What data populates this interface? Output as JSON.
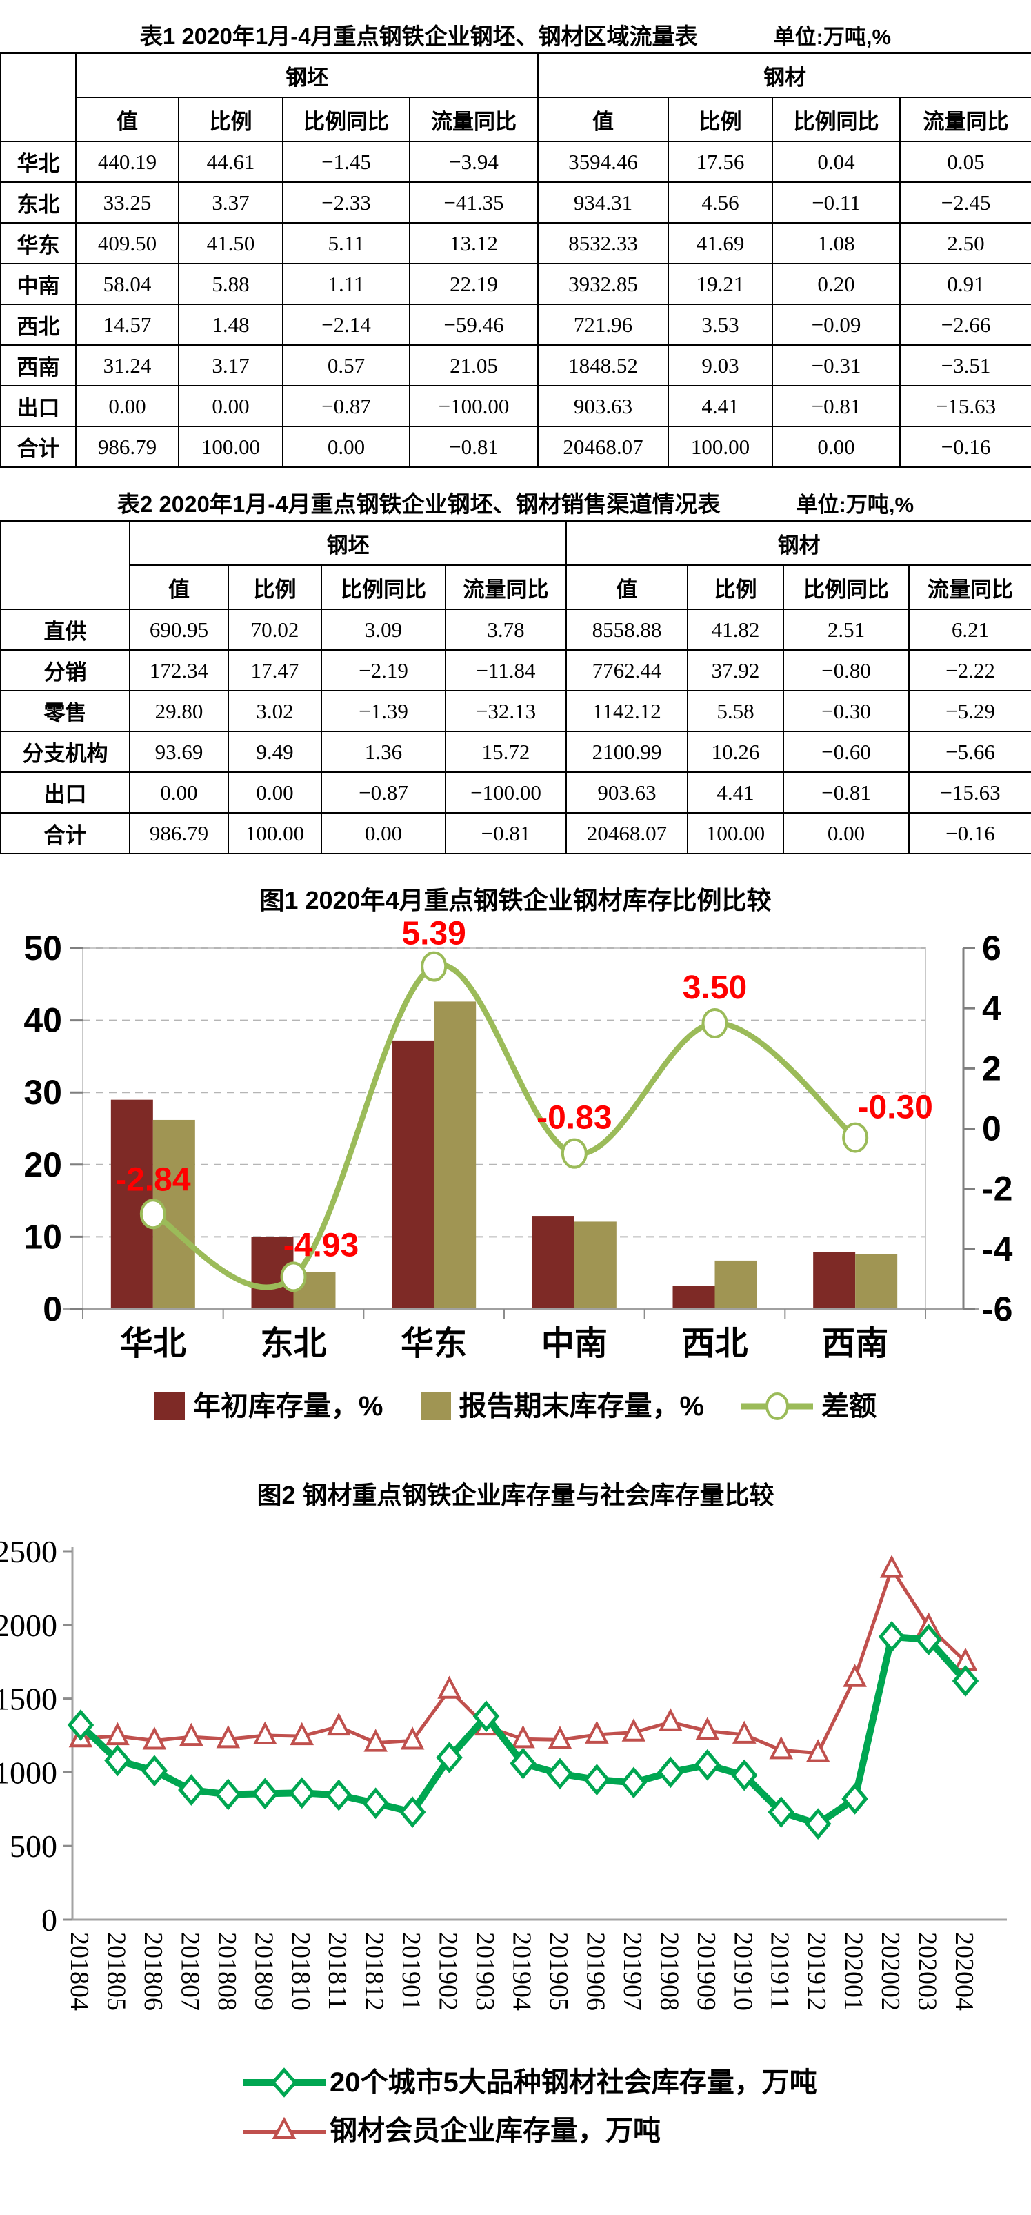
{
  "table1": {
    "title": "表1 2020年1月-4月重点钢铁企业钢坯、钢材区域流量表",
    "unit": "单位:万吨,%",
    "group_headers": [
      "钢坯",
      "钢材"
    ],
    "sub_headers": [
      "值",
      "比例",
      "比例同比",
      "流量同比"
    ],
    "row_labels": [
      "华北",
      "东北",
      "华东",
      "中南",
      "西北",
      "西南",
      "出口",
      "合计"
    ],
    "rows": [
      [
        "440.19",
        "44.61",
        "−1.45",
        "−3.94",
        "3594.46",
        "17.56",
        "0.04",
        "0.05"
      ],
      [
        "33.25",
        "3.37",
        "−2.33",
        "−41.35",
        "934.31",
        "4.56",
        "−0.11",
        "−2.45"
      ],
      [
        "409.50",
        "41.50",
        "5.11",
        "13.12",
        "8532.33",
        "41.69",
        "1.08",
        "2.50"
      ],
      [
        "58.04",
        "5.88",
        "1.11",
        "22.19",
        "3932.85",
        "19.21",
        "0.20",
        "0.91"
      ],
      [
        "14.57",
        "1.48",
        "−2.14",
        "−59.46",
        "721.96",
        "3.53",
        "−0.09",
        "−2.66"
      ],
      [
        "31.24",
        "3.17",
        "0.57",
        "21.05",
        "1848.52",
        "9.03",
        "−0.31",
        "−3.51"
      ],
      [
        "0.00",
        "0.00",
        "−0.87",
        "−100.00",
        "903.63",
        "4.41",
        "−0.81",
        "−15.63"
      ],
      [
        "986.79",
        "100.00",
        "0.00",
        "−0.81",
        "20468.07",
        "100.00",
        "0.00",
        "−0.16"
      ]
    ]
  },
  "table2": {
    "title": "表2 2020年1月-4月重点钢铁企业钢坯、钢材销售渠道情况表",
    "unit": "单位:万吨,%",
    "group_headers": [
      "钢坯",
      "钢材"
    ],
    "sub_headers": [
      "值",
      "比例",
      "比例同比",
      "流量同比"
    ],
    "row_labels": [
      "直供",
      "分销",
      "零售",
      "分支机构",
      "出口",
      "合计"
    ],
    "rows": [
      [
        "690.95",
        "70.02",
        "3.09",
        "3.78",
        "8558.88",
        "41.82",
        "2.51",
        "6.21"
      ],
      [
        "172.34",
        "17.47",
        "−2.19",
        "−11.84",
        "7762.44",
        "37.92",
        "−0.80",
        "−2.22"
      ],
      [
        "29.80",
        "3.02",
        "−1.39",
        "−32.13",
        "1142.12",
        "5.58",
        "−0.30",
        "−5.29"
      ],
      [
        "93.69",
        "9.49",
        "1.36",
        "15.72",
        "2100.99",
        "10.26",
        "−0.60",
        "−5.66"
      ],
      [
        "0.00",
        "0.00",
        "−0.87",
        "−100.00",
        "903.63",
        "4.41",
        "−0.81",
        "−15.63"
      ],
      [
        "986.79",
        "100.00",
        "0.00",
        "−0.81",
        "20468.07",
        "100.00",
        "0.00",
        "−0.16"
      ]
    ]
  },
  "chart_data": [
    {
      "type": "bar",
      "title": "图1 2020年4月重点钢铁企业钢材库存比例比较",
      "categories": [
        "华北",
        "东北",
        "华东",
        "中南",
        "西北",
        "西南"
      ],
      "series": [
        {
          "name": "年初库存量，%",
          "kind": "bar",
          "color": "#7e2a26",
          "values": [
            29.0,
            10.0,
            37.2,
            12.9,
            3.2,
            7.9
          ]
        },
        {
          "name": "报告期末库存量，%",
          "kind": "bar",
          "color": "#a09553",
          "values": [
            26.2,
            5.1,
            42.6,
            12.1,
            6.7,
            7.6
          ]
        },
        {
          "name": "差额",
          "kind": "line",
          "axis": "right",
          "color": "#9bbb59",
          "marker": "circle",
          "label_color": "#ff0000",
          "values": [
            -2.84,
            -4.93,
            5.39,
            -0.83,
            3.5,
            -0.3
          ],
          "labels": [
            "-2.84",
            "-4.93",
            "5.39",
            "-0.83",
            "3.50",
            "-0.30"
          ]
        }
      ],
      "left_axis": {
        "min": 0,
        "max": 50,
        "step": 10
      },
      "right_axis": {
        "min": -6,
        "max": 6,
        "step": 2
      },
      "grid": "dashed-horizontal",
      "legend_position": "bottom"
    },
    {
      "type": "line",
      "title": "图2 钢材重点钢铁企业库存量与社会库存量比较",
      "x": [
        "201804",
        "201805",
        "201806",
        "201807",
        "201808",
        "201809",
        "201810",
        "201811",
        "201812",
        "201901",
        "201902",
        "201903",
        "201904",
        "201905",
        "201906",
        "201907",
        "201908",
        "201909",
        "201910",
        "201911",
        "201912",
        "202001",
        "202002",
        "202003",
        "202004"
      ],
      "series": [
        {
          "name": "20个城市5大品种钢材社会库存量，万吨",
          "color": "#00a651",
          "marker": "diamond",
          "values": [
            1320,
            1080,
            1010,
            880,
            850,
            855,
            860,
            845,
            790,
            730,
            1100,
            1380,
            1060,
            990,
            950,
            930,
            1000,
            1050,
            980,
            730,
            650,
            820,
            1920,
            1900,
            1620
          ]
        },
        {
          "name": "钢材会员企业库存量，万吨",
          "color": "#c0504d",
          "marker": "triangle",
          "values": [
            1230,
            1245,
            1215,
            1240,
            1225,
            1250,
            1245,
            1310,
            1200,
            1215,
            1560,
            1310,
            1225,
            1220,
            1255,
            1270,
            1340,
            1280,
            1255,
            1150,
            1130,
            1640,
            2380,
            1990,
            1750
          ]
        }
      ],
      "y_axis": {
        "min": 0,
        "max": 2500,
        "step": 500
      },
      "grid": "off",
      "legend_position": "bottom"
    }
  ]
}
